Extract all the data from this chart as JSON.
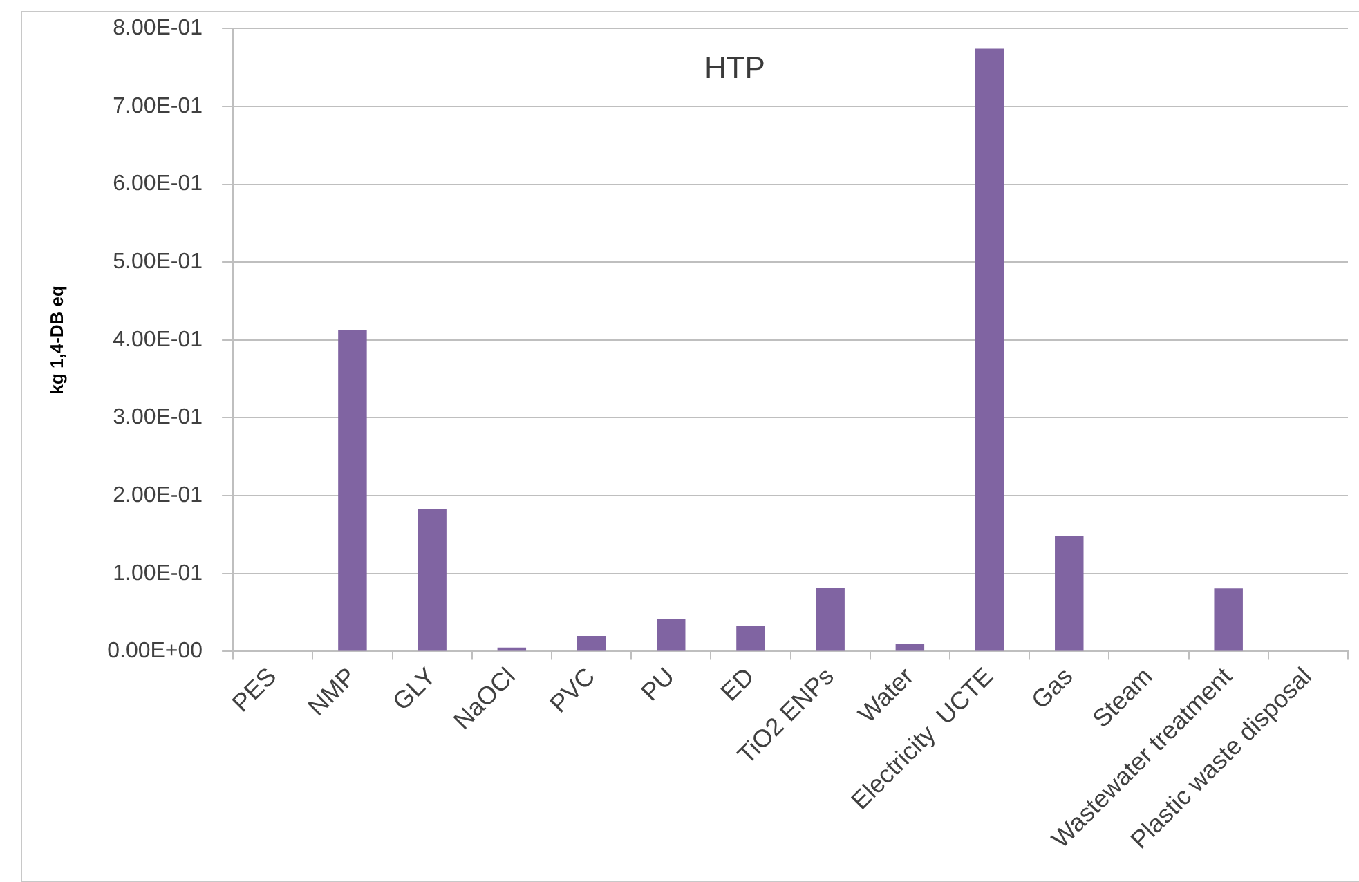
{
  "chart_data": {
    "type": "bar",
    "title": "HTP",
    "ylabel": "kg 1,4-DB eq",
    "categories": [
      "PES",
      "NMP",
      "GLY",
      "NaOCl",
      "PVC",
      "PU",
      "ED",
      "TiO2 ENPs",
      "Water",
      "Electricity  UCTE",
      "Gas",
      "Steam",
      "Wastewater treatment",
      "Plastic waste disposal"
    ],
    "values": [
      0,
      0.413,
      0.183,
      0.005,
      0.02,
      0.042,
      0.033,
      0.082,
      0.01,
      0.774,
      0.148,
      0,
      0.081,
      0
    ],
    "color": "#8064a2",
    "ylim": [
      0,
      0.8
    ],
    "yticks": [
      {
        "value": 0,
        "label": "0.00E+00"
      },
      {
        "value": 0.1,
        "label": "1.00E-01"
      },
      {
        "value": 0.2,
        "label": "2.00E-01"
      },
      {
        "value": 0.3,
        "label": "3.00E-01"
      },
      {
        "value": 0.4,
        "label": "4.00E-01"
      },
      {
        "value": 0.5,
        "label": "5.00E-01"
      },
      {
        "value": 0.6,
        "label": "6.00E-01"
      },
      {
        "value": 0.7,
        "label": "7.00E-01"
      },
      {
        "value": 0.8,
        "label": "8.00E-01"
      }
    ],
    "grid": "y"
  }
}
